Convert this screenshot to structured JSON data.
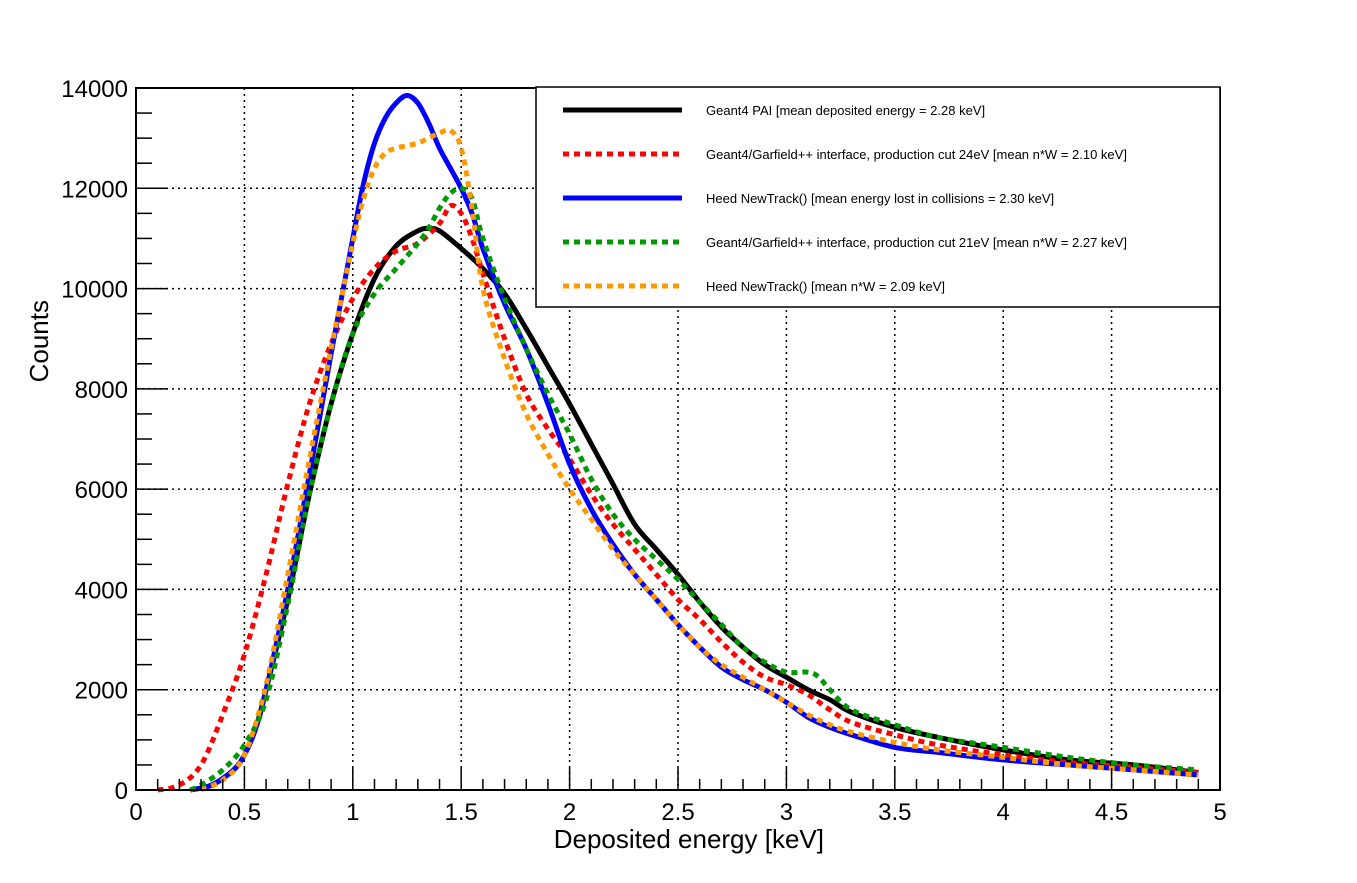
{
  "chart_data": {
    "type": "line",
    "title": "",
    "xlabel": "Deposited energy [keV]",
    "ylabel": "Counts",
    "xlim": [
      0,
      5
    ],
    "ylim": [
      0,
      14000
    ],
    "grid": true,
    "legend_position": "top-right",
    "x_ticks": [
      "0",
      "0.5",
      "1",
      "1.5",
      "2",
      "2.5",
      "3",
      "3.5",
      "4",
      "4.5",
      "5"
    ],
    "y_ticks": [
      "0",
      "2000",
      "4000",
      "6000",
      "8000",
      "10000",
      "12000",
      "14000"
    ],
    "x_tick_values": [
      0,
      0.5,
      1,
      1.5,
      2,
      2.5,
      3,
      3.5,
      4,
      4.5,
      5
    ],
    "y_tick_values": [
      0,
      2000,
      4000,
      6000,
      8000,
      10000,
      12000,
      14000
    ],
    "series": [
      {
        "name": "Geant4 PAI [mean deposited energy = 2.28 keV]",
        "color": "#000000",
        "style": "solid",
        "x": [
          0.25,
          0.35,
          0.45,
          0.5,
          0.55,
          0.6,
          0.7,
          0.8,
          0.9,
          1.0,
          1.1,
          1.2,
          1.3,
          1.35,
          1.4,
          1.5,
          1.6,
          1.7,
          1.8,
          1.9,
          2.0,
          2.1,
          2.2,
          2.3,
          2.4,
          2.5,
          2.6,
          2.7,
          2.8,
          2.9,
          3.0,
          3.1,
          3.2,
          3.3,
          3.5,
          3.7,
          4.0,
          4.3,
          4.6,
          4.9
        ],
        "y": [
          0,
          100,
          400,
          700,
          1200,
          2000,
          3800,
          5900,
          7700,
          9100,
          10200,
          10850,
          11150,
          11200,
          11150,
          10800,
          10400,
          9900,
          9200,
          8450,
          7700,
          6900,
          6100,
          5300,
          4800,
          4300,
          3750,
          3250,
          2850,
          2500,
          2250,
          2000,
          1800,
          1550,
          1250,
          1050,
          800,
          600,
          500,
          350
        ]
      },
      {
        "name": "Geant4/Garfield++ interface, production cut 24eV [mean n*W = 2.10 keV]",
        "color": "#ff0000",
        "style": "dashed",
        "x": [
          0.1,
          0.2,
          0.3,
          0.4,
          0.5,
          0.6,
          0.7,
          0.8,
          0.9,
          1.0,
          1.1,
          1.2,
          1.3,
          1.4,
          1.45,
          1.5,
          1.55,
          1.6,
          1.7,
          1.8,
          1.9,
          2.0,
          2.1,
          2.2,
          2.3,
          2.4,
          2.5,
          2.6,
          2.7,
          2.8,
          2.9,
          3.0,
          3.1,
          3.2,
          3.3,
          3.5,
          3.7,
          4.0,
          4.3,
          4.6,
          4.9
        ],
        "y": [
          0,
          100,
          500,
          1500,
          2700,
          4300,
          6100,
          7700,
          8900,
          9800,
          10400,
          10750,
          10900,
          11300,
          11650,
          11500,
          11000,
          10300,
          9000,
          7900,
          7200,
          6600,
          5900,
          5300,
          4800,
          4300,
          3800,
          3400,
          2950,
          2550,
          2250,
          2100,
          1900,
          1600,
          1350,
          1100,
          900,
          700,
          550,
          450,
          350
        ]
      },
      {
        "name": "Heed NewTrack() [mean energy lost in collisions = 2.30 keV]",
        "color": "#0000ff",
        "style": "solid",
        "x": [
          0.25,
          0.35,
          0.45,
          0.5,
          0.55,
          0.6,
          0.7,
          0.8,
          0.9,
          1.0,
          1.05,
          1.1,
          1.15,
          1.2,
          1.25,
          1.3,
          1.35,
          1.4,
          1.45,
          1.5,
          1.55,
          1.6,
          1.7,
          1.8,
          1.9,
          2.0,
          2.1,
          2.2,
          2.3,
          2.4,
          2.5,
          2.6,
          2.7,
          2.8,
          2.9,
          3.0,
          3.1,
          3.2,
          3.3,
          3.5,
          3.7,
          4.0,
          4.3,
          4.6,
          4.9
        ],
        "y": [
          0,
          100,
          400,
          700,
          1200,
          2000,
          4000,
          6300,
          8700,
          11000,
          12100,
          12900,
          13400,
          13700,
          13850,
          13700,
          13300,
          12800,
          12400,
          12000,
          11500,
          10800,
          9700,
          8800,
          7700,
          6500,
          5600,
          4900,
          4300,
          3800,
          3300,
          2850,
          2450,
          2200,
          2000,
          1750,
          1450,
          1250,
          1100,
          850,
          750,
          600,
          500,
          400,
          300
        ]
      },
      {
        "name": "Geant4/Garfield++ interface, production cut 21eV [mean n*W = 2.27 keV]",
        "color": "#009900",
        "style": "dashed",
        "x": [
          0.25,
          0.3,
          0.4,
          0.5,
          0.6,
          0.7,
          0.8,
          0.9,
          1.0,
          1.1,
          1.2,
          1.3,
          1.35,
          1.4,
          1.45,
          1.5,
          1.55,
          1.6,
          1.7,
          1.8,
          1.9,
          2.0,
          2.1,
          2.2,
          2.3,
          2.4,
          2.5,
          2.6,
          2.7,
          2.8,
          2.9,
          3.0,
          3.1,
          3.15,
          3.2,
          3.3,
          3.5,
          3.7,
          4.0,
          4.3,
          4.6,
          4.9
        ],
        "y": [
          0,
          100,
          400,
          900,
          1800,
          3700,
          5900,
          7700,
          9100,
          9900,
          10400,
          10900,
          11200,
          11600,
          11900,
          12000,
          11800,
          11000,
          9800,
          8800,
          7900,
          7100,
          6200,
          5500,
          5000,
          4600,
          4200,
          3750,
          3300,
          2850,
          2550,
          2350,
          2350,
          2250,
          2000,
          1600,
          1300,
          1050,
          850,
          650,
          500,
          400
        ]
      },
      {
        "name": "Heed NewTrack() [mean n*W = 2.09 keV]",
        "color": "#ff9900",
        "style": "dashed",
        "x": [
          0.3,
          0.4,
          0.5,
          0.6,
          0.7,
          0.8,
          0.9,
          1.0,
          1.05,
          1.1,
          1.15,
          1.2,
          1.25,
          1.3,
          1.35,
          1.4,
          1.45,
          1.5,
          1.55,
          1.6,
          1.7,
          1.8,
          1.9,
          2.0,
          2.1,
          2.2,
          2.3,
          2.4,
          2.5,
          2.6,
          2.7,
          2.8,
          2.9,
          3.0,
          3.1,
          3.2,
          3.3,
          3.5,
          3.7,
          4.0,
          4.3,
          4.6,
          4.9
        ],
        "y": [
          0,
          200,
          700,
          2100,
          4300,
          6600,
          8800,
          10900,
          11800,
          12400,
          12700,
          12800,
          12850,
          12900,
          13000,
          13100,
          13150,
          12800,
          11600,
          10000,
          8600,
          7500,
          6700,
          6000,
          5400,
          4800,
          4300,
          3800,
          3300,
          2850,
          2500,
          2250,
          2000,
          1750,
          1500,
          1300,
          1150,
          950,
          800,
          650,
          500,
          400,
          300
        ]
      }
    ]
  }
}
